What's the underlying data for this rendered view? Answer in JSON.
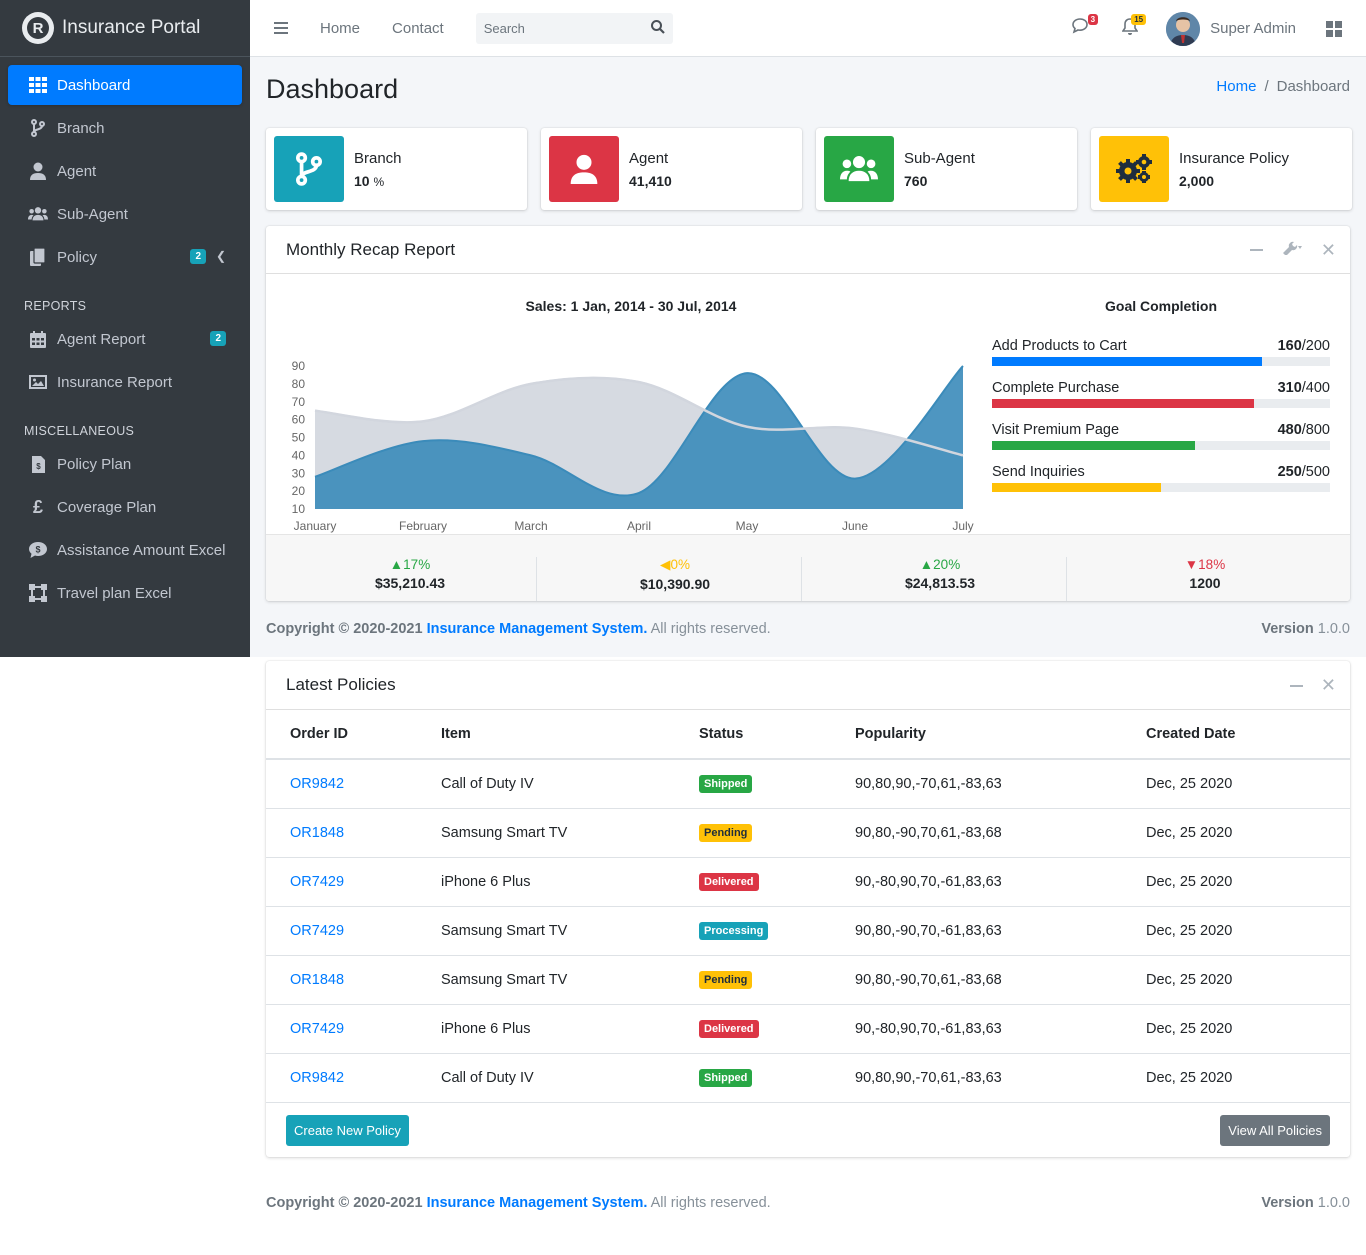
{
  "app": {
    "title": "Insurance Portal",
    "logo_letter": "R"
  },
  "sidebar": {
    "items": [
      {
        "label": "Dashboard",
        "icon": "grid-icon"
      },
      {
        "label": "Branch",
        "icon": "branch-icon"
      },
      {
        "label": "Agent",
        "icon": "user-icon"
      },
      {
        "label": "Sub-Agent",
        "icon": "users-icon"
      },
      {
        "label": "Policy",
        "icon": "copy-icon",
        "badge": "2"
      }
    ],
    "reports_header": "REPORTS",
    "reports": [
      {
        "label": "Agent Report",
        "icon": "calendar-icon",
        "badge": "2"
      },
      {
        "label": "Insurance Report",
        "icon": "image-icon"
      }
    ],
    "misc_header": "MISCELLANEOUS",
    "misc": [
      {
        "label": "Policy Plan",
        "icon": "file-invoice-icon"
      },
      {
        "label": "Coverage Plan",
        "icon": "pound-icon"
      },
      {
        "label": "Assistance Amount Excel",
        "icon": "dollar-comment-icon"
      },
      {
        "label": "Travel plan Excel",
        "icon": "vector-square-icon"
      }
    ]
  },
  "topbar": {
    "home": "Home",
    "contact": "Contact",
    "search_placeholder": "Search",
    "messages_count": "3",
    "notifications_count": "15",
    "user_name": "Super Admin"
  },
  "page": {
    "title": "Dashboard",
    "breadcrumb_home": "Home",
    "breadcrumb_sep": "/",
    "breadcrumb_current": "Dashboard"
  },
  "info_boxes": [
    {
      "label": "Branch",
      "value": "10",
      "suffix": "%",
      "color": "#17a2b8",
      "icon": "branch-icon"
    },
    {
      "label": "Agent",
      "value": "41,410",
      "suffix": "",
      "color": "#dc3545",
      "icon": "user-icon"
    },
    {
      "label": "Sub-Agent",
      "value": "760",
      "suffix": "",
      "color": "#28a745",
      "icon": "users-icon"
    },
    {
      "label": "Insurance Policy",
      "value": "2,000",
      "suffix": "",
      "color": "#ffc107",
      "icon": "gears-icon"
    }
  ],
  "recap": {
    "title": "Monthly Recap Report",
    "goal_title": "Goal Completion",
    "goals": [
      {
        "label": "Add Products to Cart",
        "done": "160",
        "total": "/200",
        "fraction": 0.8,
        "color": "#007bff"
      },
      {
        "label": "Complete Purchase",
        "done": "310",
        "total": "/400",
        "fraction": 0.775,
        "color": "#dc3545"
      },
      {
        "label": "Visit Premium Page",
        "done": "480",
        "total": "/800",
        "fraction": 0.6,
        "color": "#28a745"
      },
      {
        "label": "Send Inquiries",
        "done": "250",
        "total": "/500",
        "fraction": 0.5,
        "color": "#ffc107"
      }
    ],
    "stats": [
      {
        "pct": "17%",
        "dir": "up",
        "value": "$35,210.43",
        "color": "#28a745"
      },
      {
        "pct": "0%",
        "dir": "left",
        "value": "$10,390.90",
        "color": "#ffc107"
      },
      {
        "pct": "20%",
        "dir": "up",
        "value": "$24,813.53",
        "color": "#28a745"
      },
      {
        "pct": "18%",
        "dir": "down",
        "value": "1200",
        "color": "#dc3545"
      }
    ]
  },
  "chart_data": {
    "type": "area",
    "title": "Sales: 1 Jan, 2014 - 30 Jul, 2014",
    "categories": [
      "January",
      "February",
      "March",
      "April",
      "May",
      "June",
      "July"
    ],
    "yticks": [
      10,
      20,
      30,
      40,
      50,
      60,
      70,
      80,
      90
    ],
    "ylim": [
      10,
      90
    ],
    "series": [
      {
        "values": [
          65,
          59,
          80,
          81,
          56,
          55,
          40
        ],
        "color": "#d2d6de"
      },
      {
        "values": [
          28,
          48,
          40,
          19,
          86,
          27,
          90
        ],
        "color": "#3b8bba"
      }
    ],
    "grid": false,
    "legend": "none"
  },
  "footer": {
    "copyright": "Copyright © 2020-2021",
    "link": "Insurance Management System.",
    "rights": "All rights reserved.",
    "version_label": "Version",
    "version_value": "1.0.0"
  },
  "policies": {
    "title": "Latest Policies",
    "columns": [
      "Order ID",
      "Item",
      "Status",
      "Popularity",
      "Created Date"
    ],
    "rows": [
      {
        "id": "OR9842",
        "item": "Call of Duty IV",
        "status": "Shipped",
        "status_color": "#28a745",
        "status_text": "#ffffff",
        "popularity": "90,80,90,-70,61,-83,63",
        "date": "Dec, 25 2020"
      },
      {
        "id": "OR1848",
        "item": "Samsung Smart TV",
        "status": "Pending",
        "status_color": "#ffc107",
        "status_text": "#1f2d3d",
        "popularity": "90,80,-90,70,61,-83,68",
        "date": "Dec, 25 2020"
      },
      {
        "id": "OR7429",
        "item": "iPhone 6 Plus",
        "status": "Delivered",
        "status_color": "#dc3545",
        "status_text": "#ffffff",
        "popularity": "90,-80,90,70,-61,83,63",
        "date": "Dec, 25 2020"
      },
      {
        "id": "OR7429",
        "item": "Samsung Smart TV",
        "status": "Processing",
        "status_color": "#17a2b8",
        "status_text": "#ffffff",
        "popularity": "90,80,-90,70,-61,83,63",
        "date": "Dec, 25 2020"
      },
      {
        "id": "OR1848",
        "item": "Samsung Smart TV",
        "status": "Pending",
        "status_color": "#ffc107",
        "status_text": "#1f2d3d",
        "popularity": "90,80,-90,70,61,-83,68",
        "date": "Dec, 25 2020"
      },
      {
        "id": "OR7429",
        "item": "iPhone 6 Plus",
        "status": "Delivered",
        "status_color": "#dc3545",
        "status_text": "#ffffff",
        "popularity": "90,-80,90,70,-61,83,63",
        "date": "Dec, 25 2020"
      },
      {
        "id": "OR9842",
        "item": "Call of Duty IV",
        "status": "Shipped",
        "status_color": "#28a745",
        "status_text": "#ffffff",
        "popularity": "90,80,90,-70,61,-83,63",
        "date": "Dec, 25 2020"
      }
    ],
    "create_button": "Create New Policy",
    "view_all_button": "View All Policies"
  }
}
